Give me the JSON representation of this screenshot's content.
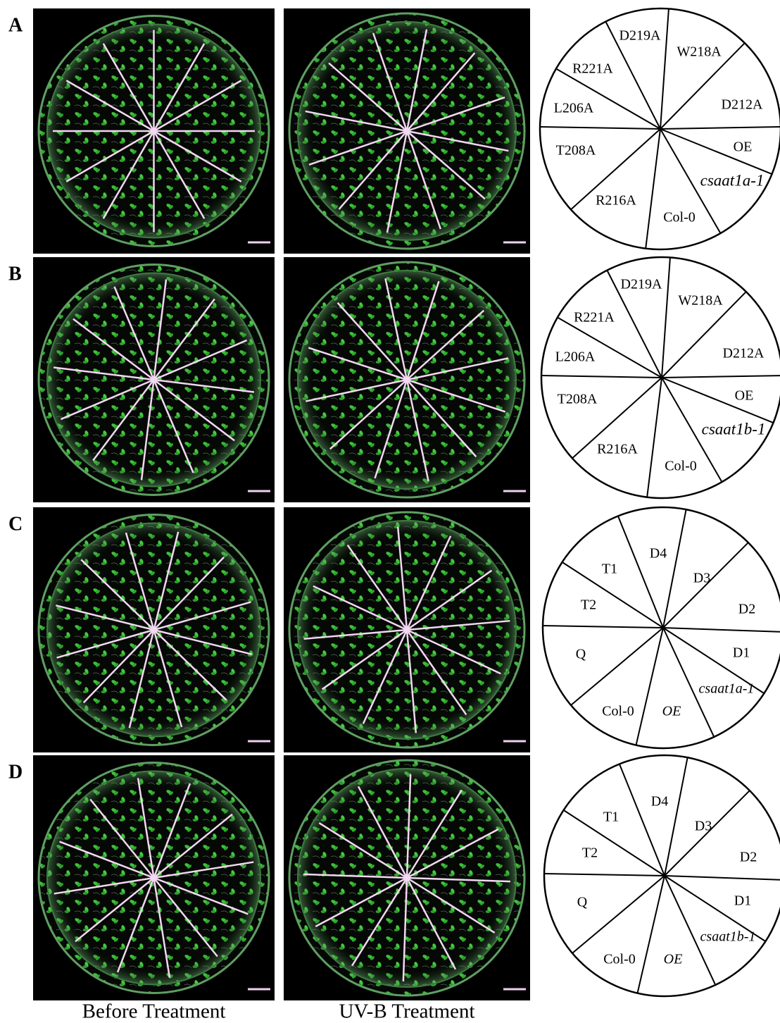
{
  "panels": [
    {
      "label": "A",
      "diagram": [
        "D219A",
        "W218A",
        "R221A",
        "D212A",
        "L206A",
        "T208A",
        "OE",
        "csaat1a-1",
        "R216A",
        "Col-0"
      ]
    },
    {
      "label": "B",
      "diagram": [
        "D219A",
        "W218A",
        "R221A",
        "D212A",
        "L206A",
        "T208A",
        "OE",
        "csaat1b-1",
        "R216A",
        "Col-0"
      ]
    },
    {
      "label": "C",
      "diagram": [
        "T1",
        "D4",
        "D3",
        "T2",
        "D2",
        "Q",
        "D1",
        "csaat1a-1",
        "Col-0",
        "OE"
      ]
    },
    {
      "label": "D",
      "diagram": [
        "T1",
        "D4",
        "D3",
        "T2",
        "D2",
        "Q",
        "D1",
        "csaat1b-1",
        "Col-0",
        "OE"
      ]
    }
  ],
  "captions": [
    "Before Treatment",
    "UV-B Treatment"
  ]
}
